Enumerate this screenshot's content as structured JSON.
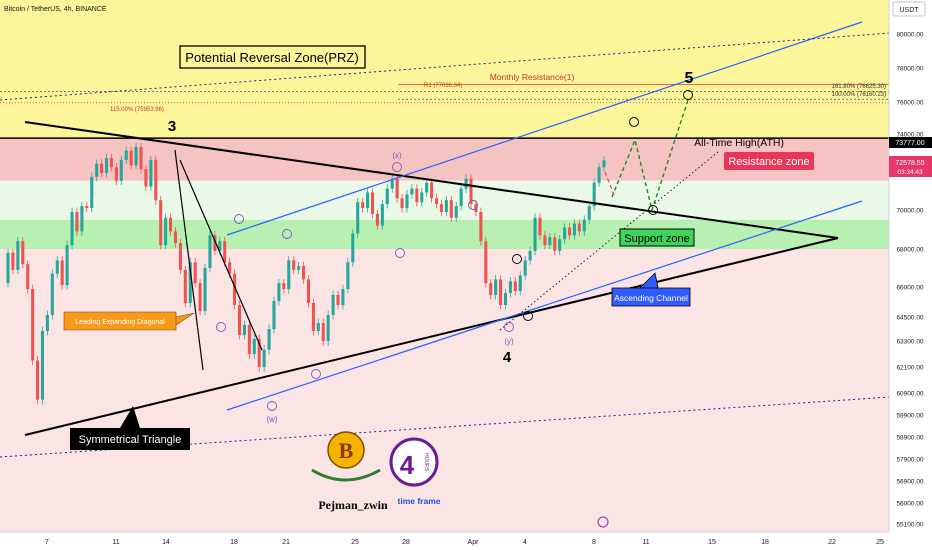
{
  "header": {
    "symbol": "Bitcoin / TetherUS, 4h, BINANCE"
  },
  "currency": "USDT",
  "colors": {
    "up": "#26a69a",
    "down": "#ef5350",
    "prz_fill": "#fdf59a",
    "resistance_fill": "#f6c3c3",
    "support_fill": "#b7f0b1",
    "channel": "#2962ff",
    "triangle": "#000000",
    "green_dash": "#1b8a1b"
  },
  "chart_data": {
    "type": "candlestick",
    "symbol": "BTCUSDT",
    "timeframe": "4h",
    "exchange": "BINANCE",
    "ylim": [
      54500,
      81800
    ],
    "y_ticks": [
      55100,
      56000,
      56900,
      57900,
      58900,
      59900,
      60900,
      62100,
      63300,
      64500,
      66000,
      68000,
      70000,
      72000,
      74000,
      76000,
      78000,
      80000
    ],
    "x_ticks": [
      "7",
      "11",
      "14",
      "18",
      "21",
      "25",
      "28",
      "Apr",
      "4",
      "8",
      "11",
      "15",
      "18",
      "22",
      "25"
    ],
    "price_last": "72578.55",
    "countdown": "03:34:43",
    "ath_tag": "73777.00",
    "candles": [
      {
        "o": 66200,
        "c": 67800
      },
      {
        "o": 67800,
        "c": 66900
      },
      {
        "o": 66900,
        "c": 68400
      },
      {
        "o": 68400,
        "c": 67200
      },
      {
        "o": 67200,
        "c": 65900
      },
      {
        "o": 65900,
        "c": 62400
      },
      {
        "o": 62400,
        "c": 60600
      },
      {
        "o": 60600,
        "c": 63800
      },
      {
        "o": 63800,
        "c": 64600
      },
      {
        "o": 64600,
        "c": 66700
      },
      {
        "o": 66700,
        "c": 67400
      },
      {
        "o": 67400,
        "c": 66100
      },
      {
        "o": 66100,
        "c": 68200
      },
      {
        "o": 68200,
        "c": 69900
      },
      {
        "o": 69900,
        "c": 68900
      },
      {
        "o": 68900,
        "c": 70200
      },
      {
        "o": 70200,
        "c": 70100
      },
      {
        "o": 70100,
        "c": 71700
      },
      {
        "o": 71700,
        "c": 72400
      },
      {
        "o": 72400,
        "c": 71900
      },
      {
        "o": 71900,
        "c": 72700
      },
      {
        "o": 72700,
        "c": 72200
      },
      {
        "o": 72200,
        "c": 71500
      },
      {
        "o": 71500,
        "c": 72600
      },
      {
        "o": 72600,
        "c": 73100
      },
      {
        "o": 73100,
        "c": 72300
      },
      {
        "o": 72300,
        "c": 73300
      },
      {
        "o": 73300,
        "c": 72100
      },
      {
        "o": 72100,
        "c": 71200
      },
      {
        "o": 71200,
        "c": 72600
      },
      {
        "o": 72600,
        "c": 70500
      },
      {
        "o": 70500,
        "c": 68200
      },
      {
        "o": 68200,
        "c": 69600
      },
      {
        "o": 69600,
        "c": 68900
      },
      {
        "o": 68900,
        "c": 68300
      },
      {
        "o": 68300,
        "c": 66900
      },
      {
        "o": 66900,
        "c": 65200
      },
      {
        "o": 65200,
        "c": 67300
      },
      {
        "o": 67300,
        "c": 66200
      },
      {
        "o": 66200,
        "c": 64800
      },
      {
        "o": 64800,
        "c": 67000
      },
      {
        "o": 67000,
        "c": 68700
      },
      {
        "o": 68700,
        "c": 67900
      },
      {
        "o": 67900,
        "c": 68400
      },
      {
        "o": 68400,
        "c": 67300
      },
      {
        "o": 67300,
        "c": 66700
      },
      {
        "o": 66700,
        "c": 65100
      },
      {
        "o": 65100,
        "c": 63600
      },
      {
        "o": 63600,
        "c": 64100
      },
      {
        "o": 64100,
        "c": 62700
      },
      {
        "o": 62700,
        "c": 63400
      },
      {
        "o": 63400,
        "c": 62100
      },
      {
        "o": 62100,
        "c": 62900
      },
      {
        "o": 62900,
        "c": 63900
      },
      {
        "o": 63900,
        "c": 65300
      },
      {
        "o": 65300,
        "c": 66200
      },
      {
        "o": 66200,
        "c": 65900
      },
      {
        "o": 65900,
        "c": 67400
      },
      {
        "o": 67400,
        "c": 66900
      },
      {
        "o": 66900,
        "c": 67100
      },
      {
        "o": 67100,
        "c": 66400
      },
      {
        "o": 66400,
        "c": 65200
      },
      {
        "o": 65200,
        "c": 63800
      },
      {
        "o": 63800,
        "c": 64200
      },
      {
        "o": 64200,
        "c": 63300
      },
      {
        "o": 63300,
        "c": 64600
      },
      {
        "o": 64600,
        "c": 65600
      },
      {
        "o": 65600,
        "c": 65100
      },
      {
        "o": 65100,
        "c": 65900
      },
      {
        "o": 65900,
        "c": 67300
      },
      {
        "o": 67300,
        "c": 68800
      },
      {
        "o": 68800,
        "c": 70400
      },
      {
        "o": 70400,
        "c": 70100
      },
      {
        "o": 70100,
        "c": 70900
      },
      {
        "o": 70900,
        "c": 69800
      },
      {
        "o": 69800,
        "c": 69200
      },
      {
        "o": 69200,
        "c": 70300
      },
      {
        "o": 70300,
        "c": 71100
      },
      {
        "o": 71100,
        "c": 71600
      },
      {
        "o": 71600,
        "c": 70600
      },
      {
        "o": 70600,
        "c": 70100
      },
      {
        "o": 70100,
        "c": 70800
      },
      {
        "o": 70800,
        "c": 71100
      },
      {
        "o": 71100,
        "c": 70400
      },
      {
        "o": 70400,
        "c": 70900
      },
      {
        "o": 70900,
        "c": 71400
      },
      {
        "o": 71400,
        "c": 70600
      },
      {
        "o": 70600,
        "c": 70300
      },
      {
        "o": 70300,
        "c": 69900
      },
      {
        "o": 69900,
        "c": 70500
      },
      {
        "o": 70500,
        "c": 69600
      },
      {
        "o": 69600,
        "c": 70200
      },
      {
        "o": 70200,
        "c": 71100
      },
      {
        "o": 71100,
        "c": 71600
      },
      {
        "o": 71600,
        "c": 70300
      },
      {
        "o": 70300,
        "c": 69900
      },
      {
        "o": 69900,
        "c": 68400
      },
      {
        "o": 68400,
        "c": 66200
      },
      {
        "o": 66200,
        "c": 65600
      },
      {
        "o": 65600,
        "c": 66400
      },
      {
        "o": 66400,
        "c": 65100
      },
      {
        "o": 65100,
        "c": 65700
      },
      {
        "o": 65700,
        "c": 66300
      },
      {
        "o": 66300,
        "c": 65800
      },
      {
        "o": 65800,
        "c": 66600
      },
      {
        "o": 66600,
        "c": 67400
      },
      {
        "o": 67400,
        "c": 67900
      },
      {
        "o": 67900,
        "c": 69600
      },
      {
        "o": 69600,
        "c": 68700
      },
      {
        "o": 68700,
        "c": 68200
      },
      {
        "o": 68200,
        "c": 68600
      },
      {
        "o": 68600,
        "c": 67900
      },
      {
        "o": 67900,
        "c": 68500
      },
      {
        "o": 68500,
        "c": 69100
      },
      {
        "o": 69100,
        "c": 68700
      },
      {
        "o": 68700,
        "c": 69300
      },
      {
        "o": 69300,
        "c": 68900
      },
      {
        "o": 68900,
        "c": 69500
      },
      {
        "o": 69500,
        "c": 70200
      },
      {
        "o": 70200,
        "c": 71400
      },
      {
        "o": 71400,
        "c": 72200
      },
      {
        "o": 72200,
        "c": 72578
      }
    ],
    "levels": {
      "ath": 73777,
      "monthly_r1": 77036.34,
      "fib_1618": 76625.3,
      "fib_1000": 76160.23,
      "fib_115": 75953.96
    }
  },
  "annotations": {
    "prz": "Potential Reversal Zone(PRZ)",
    "monthly_resistance": "Monthly Resistance(1)",
    "r1": "R1 (77036.34)",
    "fib_1618": "161.80% (76625.30)",
    "fib_1000": "100.00% (76160.23)",
    "fib_115": "115.00% (75953.96)",
    "ath": "All-Time High(ATH)",
    "resistance_zone": "Resistance zone",
    "support_zone": "Support zone",
    "ascending_channel": "Ascending Channel",
    "symmetrical_triangle": "Symmetrical Triangle",
    "leading_diagonal": "Leading Expanding Diagonal",
    "wave_3": "3",
    "wave_4": "4",
    "wave_5": "5",
    "w": "(w)",
    "x": "(x)",
    "y": "(y)",
    "author": "Pejman_zwin",
    "hours_num": "4",
    "hours_word": "HOURS",
    "time_frame": "time frame",
    "coin_letter": "B"
  }
}
